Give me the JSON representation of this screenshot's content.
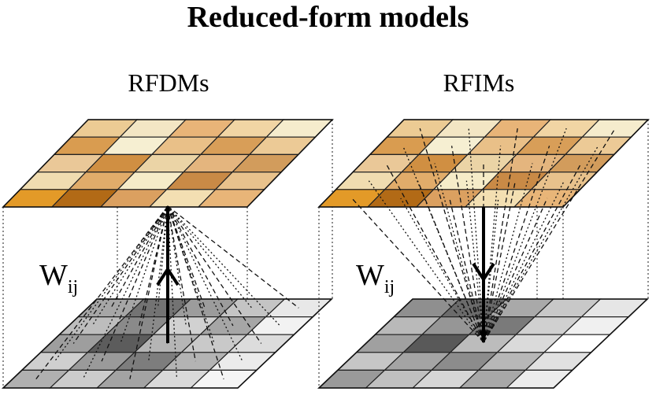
{
  "title": "Reduced-form models",
  "panels": [
    {
      "label": "RFDMs",
      "weight_label": "W",
      "weight_subscript": "ij",
      "arrow_direction": "up",
      "top_grid_colors": [
        [
          "#eccb94",
          "#f3e6c4",
          "#e8b478",
          "#f1d5a4",
          "#f5eccd"
        ],
        [
          "#d99c50",
          "#f6efd2",
          "#e9c088",
          "#d89e58",
          "#ecca96"
        ],
        [
          "#eac898",
          "#d08f42",
          "#ebd4a6",
          "#e4b57e",
          "#d29c5c"
        ],
        [
          "#f0dcb0",
          "#e1ac6a",
          "#f6ecc8",
          "#c98a46",
          "#e8c28c"
        ],
        [
          "#e39a28",
          "#b26a16",
          "#dba060",
          "#f3dfb2",
          "#e8b578"
        ]
      ],
      "bottom_grid_colors": [
        [
          "#a6a6a6",
          "#737373",
          "#9c9c9c",
          "#c4c4c4",
          "#e8e8e8"
        ],
        [
          "#bdbdbd",
          "#8a8a8a",
          "#d1d1d1",
          "#a6a6a6",
          "#f2f2f2"
        ],
        [
          "#9e9e9e",
          "#5c5c5c",
          "#b5b5b5",
          "#c9c9c9",
          "#dcdcdc"
        ],
        [
          "#cfcfcf",
          "#9a9a9a",
          "#7d7d7d",
          "#b3b3b3",
          "#ebebeb"
        ],
        [
          "#b0b0b0",
          "#cccccc",
          "#a3a3a3",
          "#d9d9d9",
          "#f5f5f5"
        ]
      ]
    },
    {
      "label": "RFIMs",
      "weight_label": "W",
      "weight_subscript": "ij",
      "arrow_direction": "down",
      "top_grid_colors": [
        [
          "#eccb94",
          "#f3e6c4",
          "#e8b478",
          "#f1d5a4",
          "#f5eccd"
        ],
        [
          "#d99c50",
          "#f6efd2",
          "#e9c088",
          "#d89e58",
          "#ecca96"
        ],
        [
          "#eac898",
          "#d08f42",
          "#ebd4a6",
          "#e4b57e",
          "#d29c5c"
        ],
        [
          "#f0dcb0",
          "#e1ac6a",
          "#f6ecc8",
          "#c98a46",
          "#e8c28c"
        ],
        [
          "#e39a28",
          "#b26a16",
          "#dba060",
          "#f3dfb2",
          "#e8b578"
        ]
      ],
      "bottom_grid_colors": [
        [
          "#8f8f8f",
          "#6b6b6b",
          "#a9a9a9",
          "#c8c8c8",
          "#e6e6e6"
        ],
        [
          "#b9b9b9",
          "#969696",
          "#7a7a7a",
          "#d0d0d0",
          "#f0f0f0"
        ],
        [
          "#a0a0a0",
          "#595959",
          "#bcbcbc",
          "#dadada",
          "#ffffff"
        ],
        [
          "#c6c6c6",
          "#a4a4a4",
          "#8c8c8c",
          "#b7b7b7",
          "#e1e1e1"
        ],
        [
          "#9a9a9a",
          "#c0c0c0",
          "#d6d6d6",
          "#a8a8a8",
          "#ececec"
        ]
      ]
    }
  ]
}
